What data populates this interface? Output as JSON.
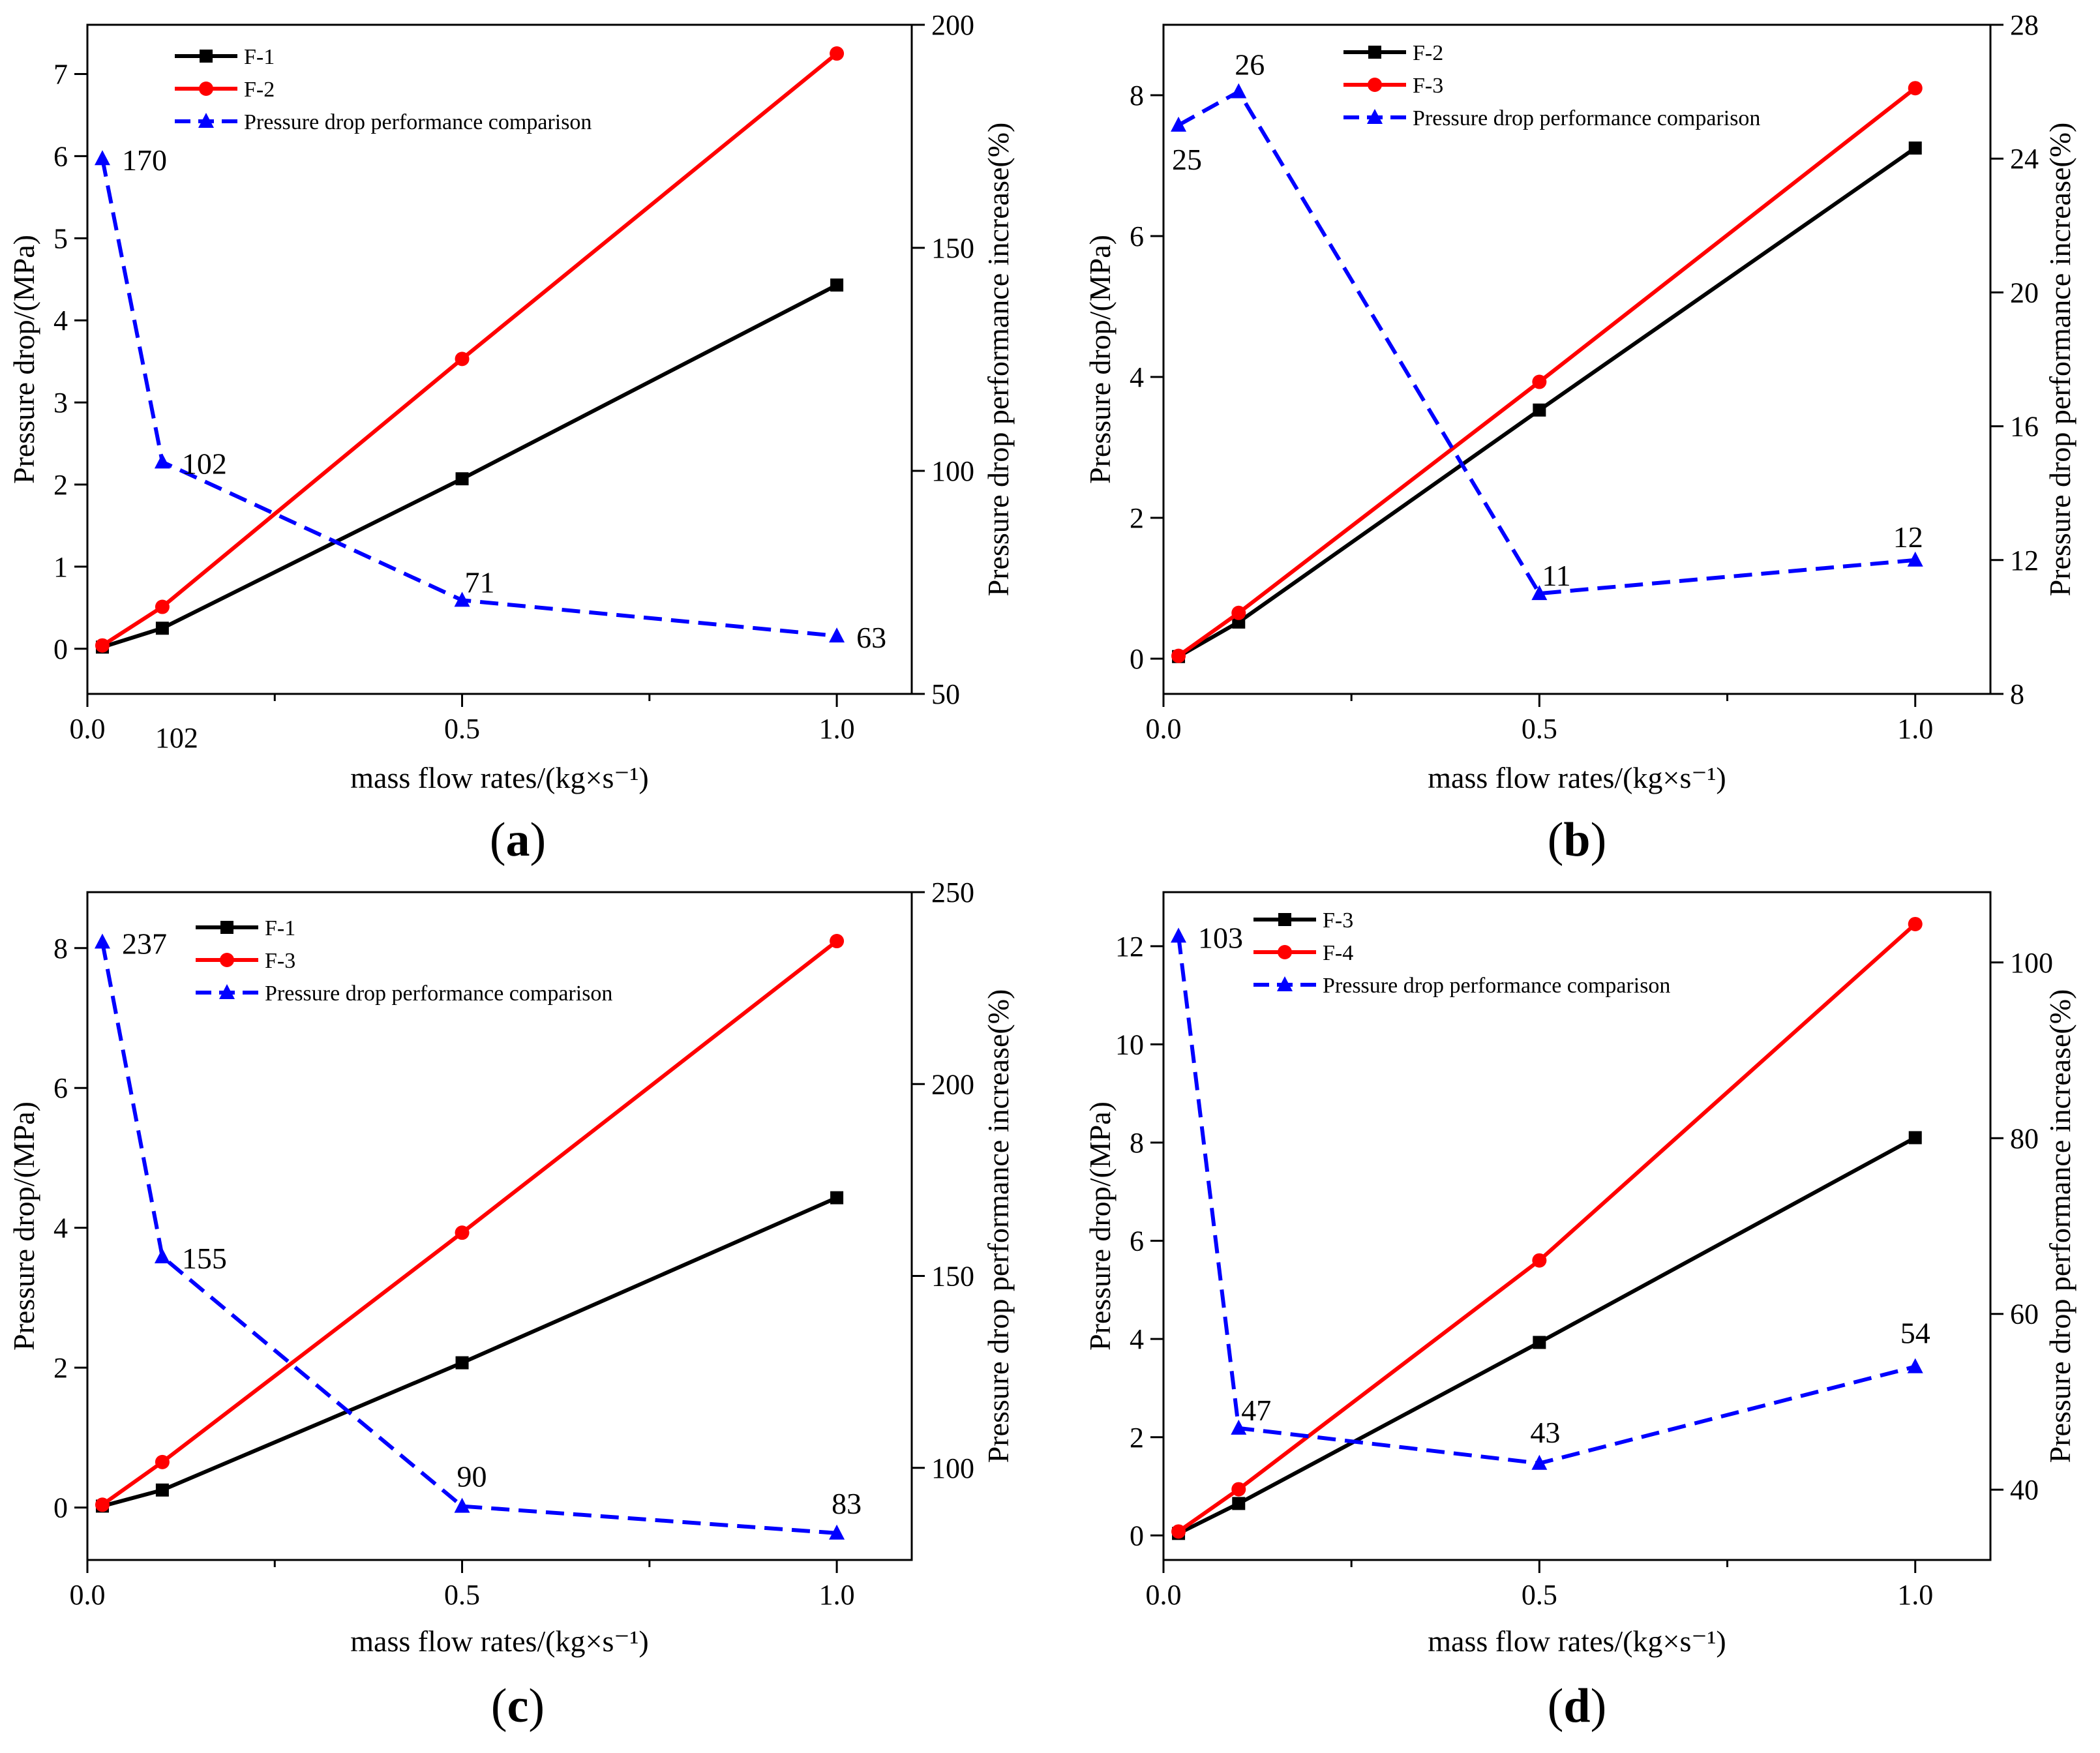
{
  "chart_data": [
    {
      "type": "line",
      "panel_label": "a",
      "xlabel": "mass flow rates/(kg×s⁻¹)",
      "ylabel": "Pressure drop/(MPa)",
      "ylabel_right": "Pressure drop performance increase(%)",
      "xlim": [
        0.0,
        1.1
      ],
      "ylim": [
        -0.55,
        7.6
      ],
      "ylim_right": [
        50,
        200
      ],
      "x_ticks": [
        0.0,
        0.5,
        1.0
      ],
      "x_tick_labels": [
        "0.0",
        "0.5",
        "1.0"
      ],
      "y_ticks": [
        0,
        1,
        2,
        3,
        4,
        5,
        6,
        7
      ],
      "y_tick_labels": [
        "0",
        "1",
        "2",
        "3",
        "4",
        "5",
        "6",
        "7"
      ],
      "y_right_ticks": [
        50,
        100,
        150,
        200
      ],
      "y_right_tick_labels": [
        "50",
        "100",
        "150",
        "200"
      ],
      "stray_x_label": "102",
      "legend_position": "top-left",
      "series": [
        {
          "name": "F-1",
          "axis": "left",
          "marker": "square",
          "color": "#000000",
          "dash": false,
          "x": [
            0.02,
            0.1,
            0.5,
            1.0
          ],
          "values": [
            0.02,
            0.25,
            2.07,
            4.43
          ]
        },
        {
          "name": "F-2",
          "axis": "left",
          "marker": "circle",
          "color": "#ff0000",
          "dash": false,
          "x": [
            0.02,
            0.1,
            0.5,
            1.0
          ],
          "values": [
            0.04,
            0.51,
            3.53,
            7.25
          ]
        },
        {
          "name": "Pressure drop performance comparison",
          "axis": "right",
          "marker": "triangle",
          "color": "#0000ff",
          "dash": true,
          "x": [
            0.02,
            0.1,
            0.5,
            1.0
          ],
          "values": [
            170,
            102,
            71,
            63
          ],
          "labels": [
            "170",
            "102",
            "71",
            "63"
          ],
          "label_pos": [
            "right",
            "right",
            "above-right",
            "right"
          ]
        }
      ]
    },
    {
      "type": "line",
      "panel_label": "b",
      "xlabel": "mass flow rates/(kg×s⁻¹)",
      "ylabel": "Pressure drop/(MPa)",
      "ylabel_right": "Pressure drop performance increase(%)",
      "xlim": [
        0.0,
        1.1
      ],
      "ylim": [
        -0.5,
        9.0
      ],
      "ylim_right": [
        8,
        28
      ],
      "x_ticks": [
        0.0,
        0.5,
        1.0
      ],
      "x_tick_labels": [
        "0.0",
        "0.5",
        "1.0"
      ],
      "y_ticks": [
        0,
        2,
        4,
        6,
        8
      ],
      "y_tick_labels": [
        "0",
        "2",
        "4",
        "6",
        "8"
      ],
      "y_right_ticks": [
        8,
        12,
        16,
        20,
        24,
        28
      ],
      "y_right_tick_labels": [
        "8",
        "12",
        "16",
        "20",
        "24",
        "28"
      ],
      "legend_position": "top-left",
      "series": [
        {
          "name": "F-2",
          "axis": "left",
          "marker": "square",
          "color": "#000000",
          "dash": false,
          "x": [
            0.02,
            0.1,
            0.5,
            1.0
          ],
          "values": [
            0.03,
            0.52,
            3.53,
            7.25
          ]
        },
        {
          "name": "F-3",
          "axis": "left",
          "marker": "circle",
          "color": "#ff0000",
          "dash": false,
          "x": [
            0.02,
            0.1,
            0.5,
            1.0
          ],
          "values": [
            0.04,
            0.65,
            3.93,
            8.1
          ]
        },
        {
          "name": "Pressure drop performance comparison",
          "axis": "right",
          "marker": "triangle",
          "color": "#0000ff",
          "dash": true,
          "x": [
            0.02,
            0.1,
            0.5,
            1.0
          ],
          "values": [
            25,
            26,
            11,
            12
          ],
          "labels": [
            "25",
            "26",
            "11",
            "12"
          ],
          "label_pos": [
            "below",
            "above",
            "above-right",
            "above"
          ]
        }
      ]
    },
    {
      "type": "line",
      "panel_label": "c",
      "xlabel": "mass flow rates/(kg×s⁻¹)",
      "ylabel": "Pressure drop/(MPa)",
      "ylabel_right": "Pressure drop performance increase(%)",
      "xlim": [
        0.0,
        1.1
      ],
      "ylim": [
        -0.75,
        8.8
      ],
      "ylim_right": [
        76,
        250
      ],
      "x_ticks": [
        0.0,
        0.5,
        1.0
      ],
      "x_tick_labels": [
        "0.0",
        "0.5",
        "1.0"
      ],
      "y_ticks": [
        0,
        2,
        4,
        6,
        8
      ],
      "y_tick_labels": [
        "0",
        "2",
        "4",
        "6",
        "8"
      ],
      "y_right_ticks": [
        100,
        150,
        200,
        250
      ],
      "y_right_tick_labels": [
        "100",
        "150",
        "200",
        "250"
      ],
      "legend_position": "top-center",
      "series": [
        {
          "name": "F-1",
          "axis": "left",
          "marker": "square",
          "color": "#000000",
          "dash": false,
          "x": [
            0.02,
            0.1,
            0.5,
            1.0
          ],
          "values": [
            0.02,
            0.25,
            2.07,
            4.43
          ]
        },
        {
          "name": "F-3",
          "axis": "left",
          "marker": "circle",
          "color": "#ff0000",
          "dash": false,
          "x": [
            0.02,
            0.1,
            0.5,
            1.0
          ],
          "values": [
            0.04,
            0.65,
            3.93,
            8.1
          ]
        },
        {
          "name": "Pressure drop performance comparison",
          "axis": "right",
          "marker": "triangle",
          "color": "#0000ff",
          "dash": true,
          "x": [
            0.02,
            0.1,
            0.5,
            1.0
          ],
          "values": [
            237,
            155,
            90,
            83
          ],
          "labels": [
            "237",
            "155",
            "90",
            "83"
          ],
          "label_pos": [
            "right",
            "right",
            "above",
            "above"
          ]
        }
      ]
    },
    {
      "type": "line",
      "panel_label": "d",
      "xlabel": "mass flow rates/(kg×s⁻¹)",
      "ylabel": "Pressure drop/(MPa)",
      "ylabel_right": "Pressure drop performance increase(%)",
      "xlim": [
        0.0,
        1.1
      ],
      "ylim": [
        -0.5,
        13.1
      ],
      "ylim_right": [
        32,
        108
      ],
      "x_ticks": [
        0.0,
        0.5,
        1.0
      ],
      "x_tick_labels": [
        "0.0",
        "0.5",
        "1.0"
      ],
      "y_ticks": [
        0,
        2,
        4,
        6,
        8,
        10,
        12
      ],
      "y_tick_labels": [
        "0",
        "2",
        "4",
        "6",
        "8",
        "10",
        "12"
      ],
      "y_right_ticks": [
        40,
        60,
        80,
        100
      ],
      "y_right_tick_labels": [
        "40",
        "60",
        "80",
        "100"
      ],
      "legend_position": "top-left",
      "series": [
        {
          "name": "F-3",
          "axis": "left",
          "marker": "square",
          "color": "#000000",
          "dash": false,
          "x": [
            0.02,
            0.1,
            0.5,
            1.0
          ],
          "values": [
            0.04,
            0.65,
            3.93,
            8.1
          ]
        },
        {
          "name": "F-4",
          "axis": "left",
          "marker": "circle",
          "color": "#ff0000",
          "dash": false,
          "x": [
            0.02,
            0.1,
            0.5,
            1.0
          ],
          "values": [
            0.08,
            0.94,
            5.6,
            12.45
          ]
        },
        {
          "name": "Pressure drop performance comparison",
          "axis": "right",
          "marker": "triangle",
          "color": "#0000ff",
          "dash": true,
          "x": [
            0.02,
            0.1,
            0.5,
            1.0
          ],
          "values": [
            103,
            47,
            43,
            54
          ],
          "labels": [
            "103",
            "47",
            "43",
            "54"
          ],
          "label_pos": [
            "right",
            "above-right",
            "above",
            "above"
          ]
        }
      ]
    }
  ]
}
